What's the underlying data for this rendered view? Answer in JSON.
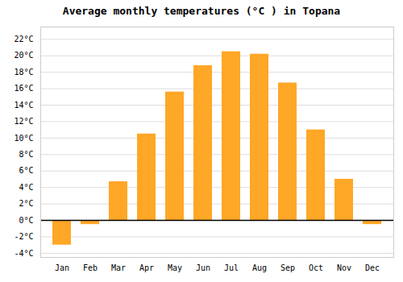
{
  "chart_data": {
    "type": "bar",
    "title": "Average monthly temperatures (°C ) in Topana",
    "categories": [
      "Jan",
      "Feb",
      "Mar",
      "Apr",
      "May",
      "Jun",
      "Jul",
      "Aug",
      "Sep",
      "Oct",
      "Nov",
      "Dec"
    ],
    "values": [
      -3.0,
      -0.5,
      4.7,
      10.5,
      15.6,
      18.8,
      20.5,
      20.2,
      16.7,
      11.0,
      5.0,
      -0.5
    ],
    "color": "#FFA726",
    "ylim": [
      -4.5,
      23.5
    ],
    "yticks": [
      {
        "value": -4,
        "label": "-4°C"
      },
      {
        "value": -2,
        "label": "-2°C"
      },
      {
        "value": 0,
        "label": "0°C"
      },
      {
        "value": 2,
        "label": "2°C"
      },
      {
        "value": 4,
        "label": "4°C"
      },
      {
        "value": 6,
        "label": "6°C"
      },
      {
        "value": 8,
        "label": "8°C"
      },
      {
        "value": 10,
        "label": "10°C"
      },
      {
        "value": 12,
        "label": "12°C"
      },
      {
        "value": 14,
        "label": "14°C"
      },
      {
        "value": 16,
        "label": "16°C"
      },
      {
        "value": 18,
        "label": "18°C"
      },
      {
        "value": 20,
        "label": "20°C"
      },
      {
        "value": 22,
        "label": "22°C"
      }
    ],
    "grid": true
  }
}
